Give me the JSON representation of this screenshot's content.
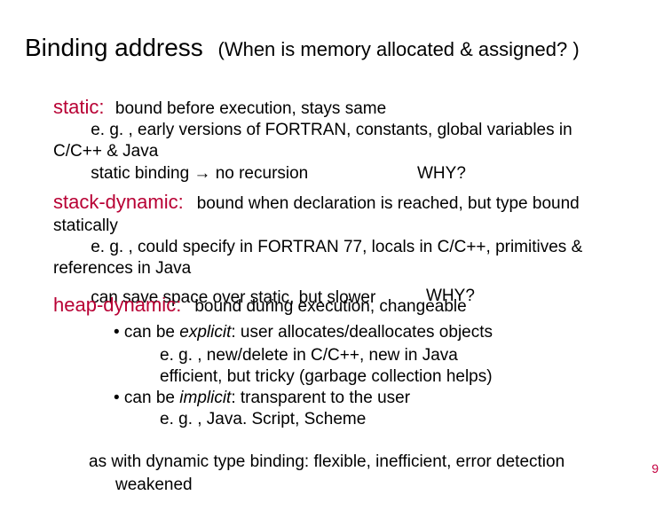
{
  "title": {
    "main": "Binding address",
    "sub": "(When is memory allocated & assigned? )"
  },
  "static": {
    "label": "static:",
    "def": "bound before execution, stays same",
    "l2a": "e. g. , early versions of FORTRAN, constants, global variables in",
    "l2b": "C/C++ & Java",
    "l3": "static binding → no recursion",
    "why": "WHY?"
  },
  "stack": {
    "label": "stack-dynamic:",
    "def": "bound when declaration is reached, but type bound",
    "l2": "statically",
    "l3": "e. g. , could specify in FORTRAN 77, locals in C/C++, primitives &",
    "l4": "references in Java",
    "messy": "can save space over static, but slower",
    "why": "WHY?"
  },
  "heap": {
    "label": "heap-dynamic:",
    "def": "bound during execution, changeable",
    "b1_prefix": "• can be ",
    "b1_em": "explicit",
    "b1_suffix": ":  user allocates/deallocates objects",
    "b1l2": "e. g. , new/delete in C/C++, new in Java",
    "b1l3": "efficient, but tricky (garbage collection helps)",
    "b2_prefix": "• can be ",
    "b2_em": "implicit",
    "b2_suffix": ":  transparent to the user",
    "b2l2": "e. g. , Java. Script, Scheme"
  },
  "footer": {
    "l1": "as with dynamic type binding: flexible, inefficient, error detection",
    "l2": "weakened"
  },
  "page": "9",
  "colors": {
    "accent": "#b80034",
    "text": "#000000",
    "bg": "#ffffff"
  }
}
